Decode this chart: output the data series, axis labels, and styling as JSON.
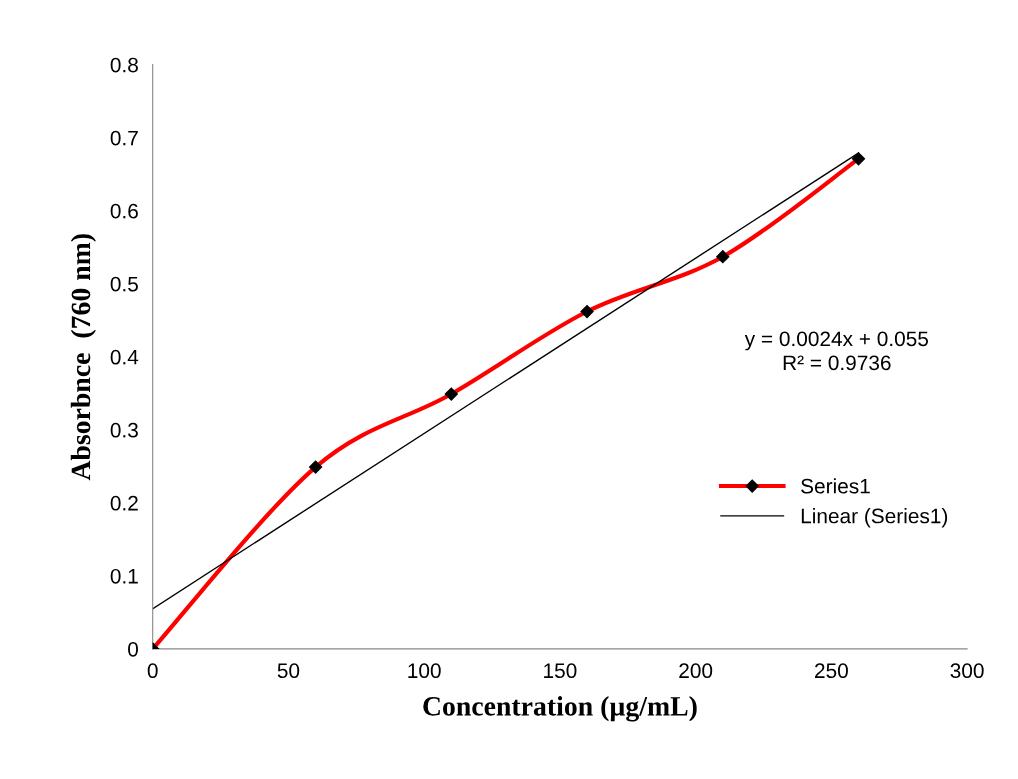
{
  "chart_data": {
    "type": "line",
    "xlabel": "Concentration (µg/mL)",
    "ylabel": "Absorbnce  (760 nm)",
    "series": [
      {
        "name": "Series1",
        "color": "#ff0000",
        "x": [
          0,
          60,
          110,
          160,
          210,
          260
        ],
        "values": [
          0,
          0.249,
          0.349,
          0.462,
          0.537,
          0.671
        ],
        "marker": "diamond"
      },
      {
        "name": "Linear (Series1)",
        "color": "#000000",
        "x": [
          0,
          260
        ],
        "values": [
          0.055,
          0.679
        ],
        "marker": "none"
      }
    ],
    "xlim": [
      0,
      300
    ],
    "xticks": [
      0,
      50,
      100,
      150,
      200,
      250,
      300
    ],
    "ylim": [
      0,
      0.8
    ],
    "yticks": [
      0,
      0.1,
      0.2,
      0.3,
      0.4,
      0.5,
      0.6,
      0.7,
      0.8
    ],
    "annotations": [
      "y = 0.0024x + 0.055\nR² = 0.9736"
    ],
    "grid": false,
    "legend": "right"
  }
}
